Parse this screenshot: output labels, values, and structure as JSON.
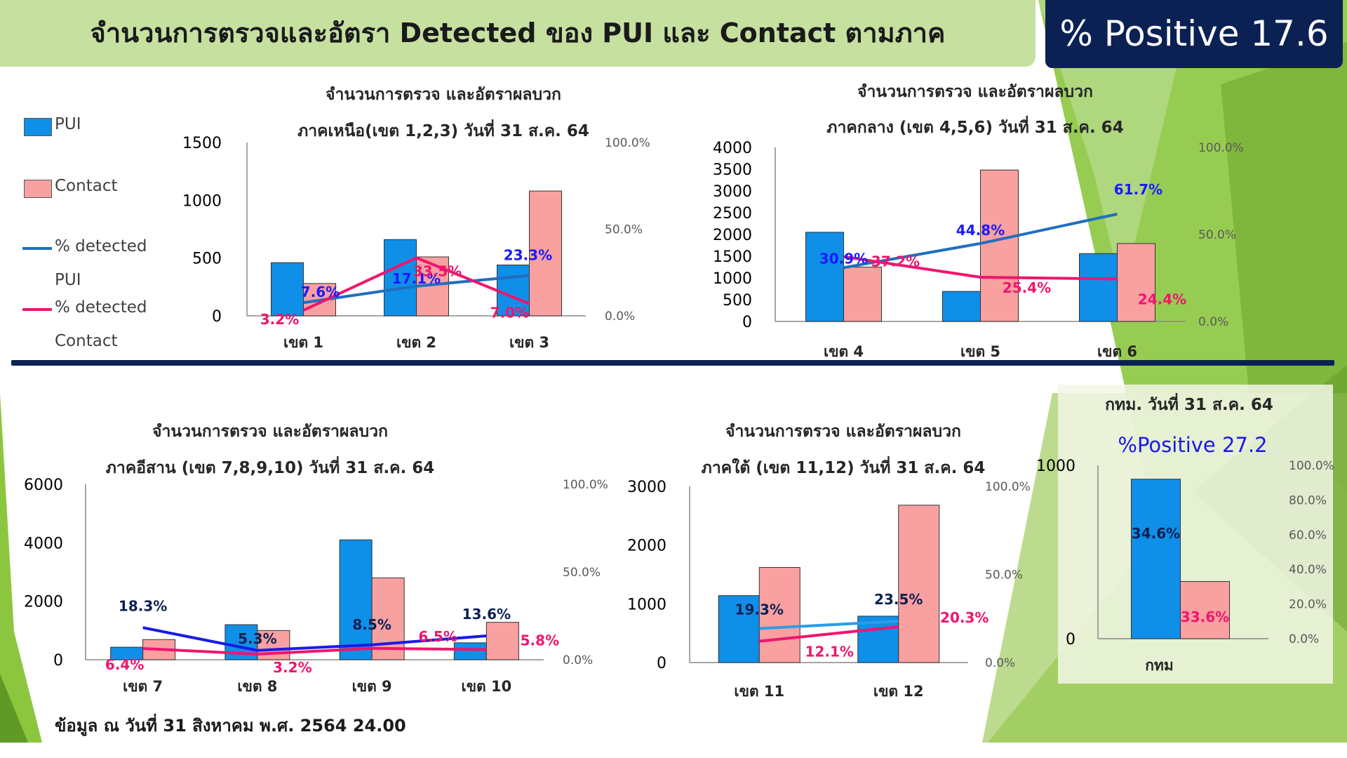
{
  "header": {
    "title": "จำนวนการตรวจและอัตรา Detected ของ PUI และ Contact ตามภาค",
    "positive_label": "% Positive 17.6"
  },
  "legend": {
    "pui": "PUI",
    "contact": "Contact",
    "det_pui_1": "% detected",
    "det_pui_2": "PUI",
    "det_contact_1": "% detected",
    "det_contact_2": "Contact"
  },
  "colors": {
    "pui": "#0f8fe8",
    "contact": "#f9a0a0",
    "detected_pui": "#1f6fbf",
    "detected_contact": "#f0156e",
    "navy": "#0b2154",
    "green_light": "#c6e0a0",
    "green_bright": "#8cc63f"
  },
  "footnote": "ข้อมูล ณ วันที่ 31 สิงหาคม พ.ศ. 2564 24.00",
  "chart_data": [
    {
      "id": "north",
      "type": "bar",
      "title_line1": "จำนวนการตรวจ และอัตราผลบวก",
      "title_line2": "ภาคเหนือ(เขต 1,2,3) วันที่ 31 ส.ค. 64",
      "categories": [
        "เขต 1",
        "เขต 2",
        "เขต 3"
      ],
      "left_ticks": [
        "0",
        "500",
        "1000",
        "1500"
      ],
      "right_ticks": [
        "0.0%",
        "50.0%",
        "100.0%"
      ],
      "ylim": [
        0,
        1500
      ],
      "y2lim": [
        0,
        100
      ],
      "series": [
        {
          "name": "PUI",
          "values": [
            460,
            660,
            440
          ]
        },
        {
          "name": "Contact",
          "values": [
            280,
            510,
            1080
          ]
        }
      ],
      "line_series": [
        {
          "name": "% detected PUI",
          "values": [
            7.6,
            17.1,
            23.3
          ],
          "labels": [
            "7.6%",
            "17.1%",
            "23.3%"
          ]
        },
        {
          "name": "% detected Contact",
          "values": [
            3.2,
            33.5,
            7.0
          ],
          "labels": [
            "3.2%",
            "33.5%",
            "7.0%"
          ]
        }
      ]
    },
    {
      "id": "central",
      "type": "bar",
      "title_line1": "จำนวนการตรวจ และอัตราผลบวก",
      "title_line2": "ภาคกลาง (เขต 4,5,6) วันที่ 31 ส.ค. 64",
      "categories": [
        "เขต 4",
        "เขต 5",
        "เขต 6"
      ],
      "left_ticks": [
        "0",
        "500",
        "1000",
        "1500",
        "2000",
        "2500",
        "3000",
        "3500",
        "4000"
      ],
      "right_ticks": [
        "0.0%",
        "50.0%",
        "100.0%"
      ],
      "ylim": [
        0,
        4000
      ],
      "y2lim": [
        0,
        100
      ],
      "series": [
        {
          "name": "PUI",
          "values": [
            2050,
            690,
            1560
          ]
        },
        {
          "name": "Contact",
          "values": [
            1250,
            3480,
            1790
          ]
        }
      ],
      "line_series": [
        {
          "name": "% detected PUI",
          "values": [
            30.9,
            44.8,
            61.7
          ],
          "labels": [
            "30.9%",
            "44.8%",
            "61.7%"
          ]
        },
        {
          "name": "% detected Contact",
          "values": [
            37.2,
            25.4,
            24.4
          ],
          "labels": [
            "37.2%",
            "25.4%",
            "24.4%"
          ]
        }
      ]
    },
    {
      "id": "northeast",
      "type": "bar",
      "title_line1": "จำนวนการตรวจ และอัตราผลบวก",
      "title_line2": "ภาคอีสาน (เขต 7,8,9,10) วันที่ 31 ส.ค. 64",
      "categories": [
        "เขต 7",
        "เขต 8",
        "เขต 9",
        "เขต 10"
      ],
      "left_ticks": [
        "0",
        "2000",
        "4000",
        "6000"
      ],
      "right_ticks": [
        "0.0%",
        "50.0%",
        "100.0%"
      ],
      "ylim": [
        0,
        6000
      ],
      "y2lim": [
        0,
        100
      ],
      "series": [
        {
          "name": "PUI",
          "values": [
            430,
            1200,
            4100,
            580
          ]
        },
        {
          "name": "Contact",
          "values": [
            690,
            1000,
            2800,
            1280
          ]
        }
      ],
      "line_series": [
        {
          "name": "% detected PUI",
          "values": [
            18.3,
            5.3,
            8.5,
            13.6
          ],
          "labels": [
            "18.3%",
            "5.3%",
            "8.5%",
            "13.6%"
          ]
        },
        {
          "name": "% detected Contact",
          "values": [
            6.4,
            3.2,
            6.5,
            5.8
          ],
          "labels": [
            "6.4%",
            "3.2%",
            "6.5%",
            "5.8%"
          ]
        }
      ]
    },
    {
      "id": "south",
      "type": "bar",
      "title_line1": "จำนวนการตรวจ และอัตราผลบวก",
      "title_line2": "ภาคใต้ (เขต 11,12) วันที่ 31 ส.ค. 64",
      "categories": [
        "เขต 11",
        "เขต 12"
      ],
      "left_ticks": [
        "0",
        "1000",
        "2000",
        "3000"
      ],
      "right_ticks": [
        "0.0%",
        "50.0%",
        "100.0%"
      ],
      "ylim": [
        0,
        3000
      ],
      "y2lim": [
        0,
        100
      ],
      "series": [
        {
          "name": "PUI",
          "values": [
            1140,
            790
          ]
        },
        {
          "name": "Contact",
          "values": [
            1620,
            2680
          ]
        }
      ],
      "line_series": [
        {
          "name": "% detected PUI",
          "values": [
            19.3,
            23.5
          ],
          "labels": [
            "19.3%",
            "23.5%"
          ]
        },
        {
          "name": "% detected Contact",
          "values": [
            12.1,
            20.3
          ],
          "labels": [
            "12.1%",
            "20.3%"
          ]
        }
      ]
    },
    {
      "id": "bangkok",
      "type": "bar",
      "title_line1": "กทม. วันที่ 31 ส.ค. 64",
      "title_line2": "%Positive 27.2",
      "categories": [
        "กทม"
      ],
      "left_ticks": [
        "0",
        "1000"
      ],
      "right_ticks": [
        "0.0%",
        "20.0%",
        "40.0%",
        "60.0%",
        "80.0%",
        "100.0%"
      ],
      "ylim": [
        0,
        1000
      ],
      "y2lim": [
        0,
        100
      ],
      "series": [
        {
          "name": "PUI",
          "values": [
            920
          ]
        },
        {
          "name": "Contact",
          "values": [
            330
          ]
        }
      ],
      "bar_labels": [
        "34.6%",
        "33.6%"
      ]
    }
  ]
}
